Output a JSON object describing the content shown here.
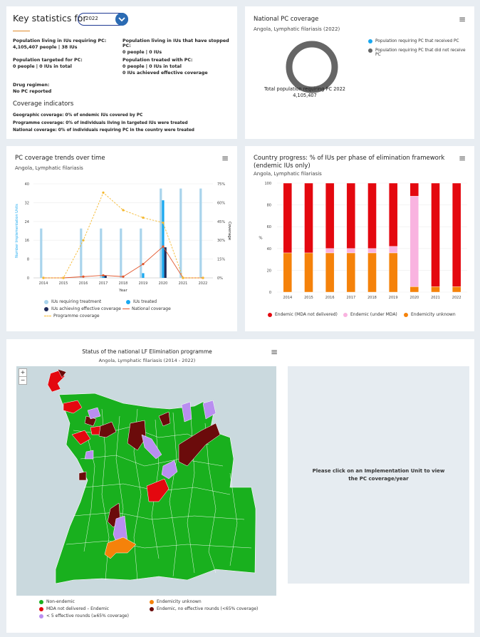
{
  "key_stats": {
    "title": "Key statistics for",
    "year_selected": "2022",
    "pop_requiring_label": "Population living in IUs requiring PC:",
    "pop_requiring_value": "4,105,407 people | 38 IUs",
    "pop_stopped_label": "Population living in IUs that have stopped PC:",
    "pop_stopped_value": "0 people | 0 IUs",
    "pop_targeted_label": "Population targeted for PC:",
    "pop_targeted_value": "0 people | 0 IUs in total",
    "pop_treated_label": "Population treated with PC:",
    "pop_treated_value1": "0 people | 0 IUs in total",
    "pop_treated_value2": "0 IUs achieved effective coverage",
    "drug_label": "Drug regimen:",
    "drug_value": "No PC reported",
    "coverage_heading": "Coverage indicators",
    "geo_label": "Geographic coverage:",
    "geo_value": "0% of endemic IUs covered by PC",
    "prog_label": "Programme coverage:",
    "prog_value": "0% of individuals living in targeted IUs were treated",
    "nat_label": "National coverage:",
    "nat_value": "0% of individuals requiring PC in the country were treated"
  },
  "national_pc": {
    "title": "National PC coverage",
    "subtitle": "Angola, Lymphatic filariasis (2022)",
    "total_label": "Total population requiring PC 2022",
    "total_value": "4,105,407",
    "colors": {
      "received": "#19a8f0",
      "not_received": "#666666"
    },
    "chart_data": {
      "type": "pie",
      "slices": [
        {
          "name": "Population requiring PC that received PC",
          "value": 0
        },
        {
          "name": "Population requiring PC that did not receive PC",
          "value": 4105407
        }
      ]
    }
  },
  "trends": {
    "title": "PC coverage trends over time",
    "subtitle": "Angola, Lymphatic filariasis",
    "chart_data": {
      "type": "bar",
      "categories": [
        "2014",
        "2015",
        "2016",
        "2017",
        "2018",
        "2019",
        "2020",
        "2021",
        "2022"
      ],
      "xlabel": "Year",
      "ylabel": "Number Implementation Units",
      "y2label": "Coverage",
      "ylim": [
        0,
        40
      ],
      "yticks": [
        0,
        8,
        16,
        24,
        32,
        40
      ],
      "y2lim": [
        0,
        75
      ],
      "y2ticks": [
        "0%",
        "15%",
        "30%",
        "45%",
        "60%",
        "75%"
      ],
      "series": [
        {
          "name": "IUs requiring treatment",
          "kind": "bar",
          "color": "#a9d4ec",
          "values": [
            21,
            0,
            21,
            21,
            21,
            21,
            38,
            38,
            38
          ]
        },
        {
          "name": "IUs treated",
          "kind": "bar",
          "color": "#19a8f0",
          "values": [
            0,
            0,
            0,
            1,
            0,
            2,
            33,
            0,
            0
          ]
        },
        {
          "name": "IUs achieving effective coverage",
          "kind": "bar",
          "color": "#1f2a5a",
          "values": [
            0,
            0,
            0,
            1,
            0,
            0,
            13,
            0,
            0
          ]
        },
        {
          "name": "National coverage",
          "kind": "line2",
          "color": "#e2562c",
          "values": [
            0,
            0,
            1,
            2,
            1,
            11,
            25,
            0,
            0
          ]
        },
        {
          "name": "Programme coverage",
          "kind": "dash2",
          "color": "#f5b82e",
          "values": [
            0,
            0,
            30,
            68,
            54,
            48,
            44,
            0,
            0
          ]
        }
      ]
    }
  },
  "progress": {
    "title": "Country progress: % of IUs per phase of elimination framework (endemic IUs only)",
    "subtitle": "Angola, Lymphatic filariasis",
    "chart_data": {
      "type": "bar",
      "stacked": true,
      "categories": [
        "2014",
        "2015",
        "2016",
        "2017",
        "2018",
        "2019",
        "2020",
        "2021",
        "2022"
      ],
      "ylabel": "%",
      "ylim": [
        0,
        100
      ],
      "yticks": [
        0,
        20,
        40,
        60,
        80,
        100
      ],
      "series": [
        {
          "name": "Endemicity unknown",
          "color": "#f5820a",
          "values": [
            36,
            36,
            36,
            36,
            36,
            36,
            5,
            5,
            5
          ]
        },
        {
          "name": "Endemic (under MDA)",
          "color": "#f9b3e0",
          "values": [
            0,
            0,
            4,
            4,
            4,
            6,
            83,
            0,
            0
          ]
        },
        {
          "name": "Endemic (MDA not delivered)",
          "color": "#e4080f",
          "values": [
            64,
            64,
            60,
            60,
            60,
            58,
            12,
            95,
            95
          ]
        }
      ],
      "legend_order": [
        "Endemic (MDA not delivered)",
        "Endemic (under MDA)",
        "Endemicity unknown"
      ]
    }
  },
  "map": {
    "title": "Status of the national LF Elimination programme",
    "subtitle": "Angola, Lymphatic filariasis (2014 - 2022)",
    "zoom_in": "+",
    "zoom_out": "−",
    "legend": [
      {
        "label": "Non-endemic",
        "color": "#19b01e"
      },
      {
        "label": "Endemicity unknown",
        "color": "#f5820a"
      },
      {
        "label": "MDA not delivered – Endemic",
        "color": "#e4080f"
      },
      {
        "label": "Endemic, no effective rounds (<65% coverage)",
        "color": "#6b0b0b"
      },
      {
        "label": "< 5 effective rounds (≥65% coverage)",
        "color": "#b98ef0"
      }
    ],
    "info_text": "Please click on an Implementation Unit to view the PC coverage/year"
  }
}
